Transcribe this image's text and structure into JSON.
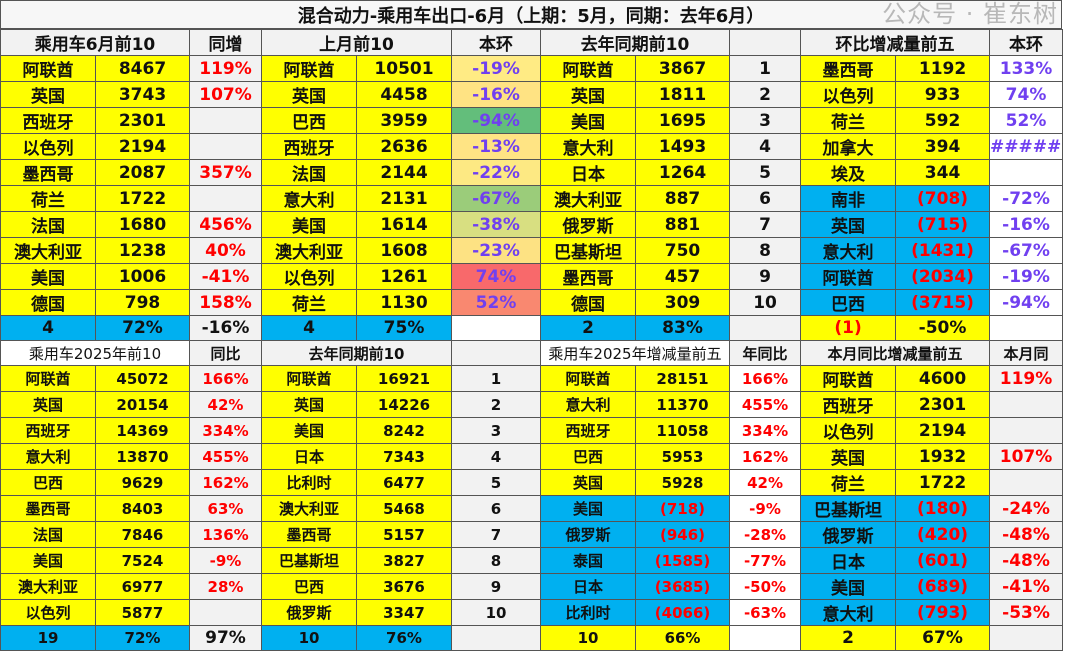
{
  "title": "混合动力-乘用车出口-6月（上期：5月，同期：去年6月）",
  "watermark": "公众号 · 崔东树",
  "colors": {
    "yellow": "#ffff00",
    "blue": "#00b0f0",
    "red": "#ff0000",
    "purple": "#7040f0"
  },
  "top": {
    "headers": [
      "乘用车6月前10",
      "同增",
      "上月前10",
      "本环",
      "去年同期前10",
      "",
      "环比增减量前五",
      "本环"
    ],
    "rows": [
      [
        "阿联酋",
        "8467",
        "119%",
        "阿联酋",
        "10501",
        "-19%",
        "阿联酋",
        "3867",
        "1",
        "墨西哥",
        "1192",
        "133%"
      ],
      [
        "英国",
        "3743",
        "107%",
        "英国",
        "4458",
        "-16%",
        "英国",
        "1811",
        "2",
        "以色列",
        "933",
        "74%"
      ],
      [
        "西班牙",
        "2301",
        "",
        "巴西",
        "3959",
        "-94%",
        "美国",
        "1695",
        "3",
        "荷兰",
        "592",
        "52%"
      ],
      [
        "以色列",
        "2194",
        "",
        "西班牙",
        "2636",
        "-13%",
        "意大利",
        "1493",
        "4",
        "加拿大",
        "394",
        "######"
      ],
      [
        "墨西哥",
        "2087",
        "357%",
        "法国",
        "2144",
        "-22%",
        "日本",
        "1264",
        "5",
        "埃及",
        "344",
        ""
      ],
      [
        "荷兰",
        "1722",
        "",
        "意大利",
        "2131",
        "-67%",
        "澳大利亚",
        "887",
        "6",
        "南非",
        "(708)",
        "-72%"
      ],
      [
        "法国",
        "1680",
        "456%",
        "美国",
        "1614",
        "-38%",
        "俄罗斯",
        "881",
        "7",
        "英国",
        "(715)",
        "-16%"
      ],
      [
        "澳大利亚",
        "1238",
        "40%",
        "澳大利亚",
        "1608",
        "-23%",
        "巴基斯坦",
        "750",
        "8",
        "意大利",
        "(1431)",
        "-67%"
      ],
      [
        "美国",
        "1006",
        "-41%",
        "以色列",
        "1261",
        "74%",
        "墨西哥",
        "457",
        "9",
        "阿联酋",
        "(2034)",
        "-19%"
      ],
      [
        "德国",
        "798",
        "158%",
        "荷兰",
        "1130",
        "52%",
        "德国",
        "309",
        "10",
        "巴西",
        "(3715)",
        "-94%"
      ]
    ],
    "heat": [
      "#ffeb84",
      "#ffe383",
      "#63be7b",
      "#ffe484",
      "#fde983",
      "#9bcc7a",
      "#d8df81",
      "#fde283",
      "#f8696b",
      "#f98870"
    ],
    "total": [
      "4",
      "72%",
      "-16%",
      "4",
      "75%",
      "",
      "2",
      "83%",
      "",
      "(1)",
      "-50%",
      ""
    ]
  },
  "bottom": {
    "headers": [
      "乘用车2025年前10",
      "同比",
      "去年同期前10",
      "",
      "乘用车2025年增减量前五",
      "年同比",
      "本月同比增减量前五",
      "本月同"
    ],
    "rows": [
      [
        "阿联酋",
        "45072",
        "166%",
        "阿联酋",
        "16921",
        "1",
        "阿联酋",
        "28151",
        "166%",
        "阿联酋",
        "4600",
        "119%"
      ],
      [
        "英国",
        "20154",
        "42%",
        "英国",
        "14226",
        "2",
        "意大利",
        "11370",
        "455%",
        "西班牙",
        "2301",
        ""
      ],
      [
        "西班牙",
        "14369",
        "334%",
        "美国",
        "8242",
        "3",
        "西班牙",
        "11058",
        "334%",
        "以色列",
        "2194",
        ""
      ],
      [
        "意大利",
        "13870",
        "455%",
        "日本",
        "7343",
        "4",
        "巴西",
        "5953",
        "162%",
        "英国",
        "1932",
        "107%"
      ],
      [
        "巴西",
        "9629",
        "162%",
        "比利时",
        "6477",
        "5",
        "英国",
        "5928",
        "42%",
        "荷兰",
        "1722",
        ""
      ],
      [
        "墨西哥",
        "8403",
        "63%",
        "澳大利亚",
        "5468",
        "6",
        "美国",
        "(718)",
        "-9%",
        "巴基斯坦",
        "(180)",
        "-24%"
      ],
      [
        "法国",
        "7846",
        "136%",
        "墨西哥",
        "5157",
        "7",
        "俄罗斯",
        "(946)",
        "-28%",
        "俄罗斯",
        "(420)",
        "-48%"
      ],
      [
        "美国",
        "7524",
        "-9%",
        "巴基斯坦",
        "3827",
        "8",
        "泰国",
        "(1585)",
        "-77%",
        "日本",
        "(601)",
        "-48%"
      ],
      [
        "澳大利亚",
        "6977",
        "28%",
        "巴西",
        "3676",
        "9",
        "日本",
        "(3685)",
        "-50%",
        "美国",
        "(689)",
        "-41%"
      ],
      [
        "以色列",
        "5877",
        "",
        "俄罗斯",
        "3347",
        "10",
        "比利时",
        "(4066)",
        "-63%",
        "意大利",
        "(793)",
        "-53%"
      ]
    ],
    "total": [
      "19",
      "72%",
      "97%",
      "10",
      "76%",
      "",
      "10",
      "66%",
      "",
      "2",
      "67%",
      ""
    ]
  }
}
